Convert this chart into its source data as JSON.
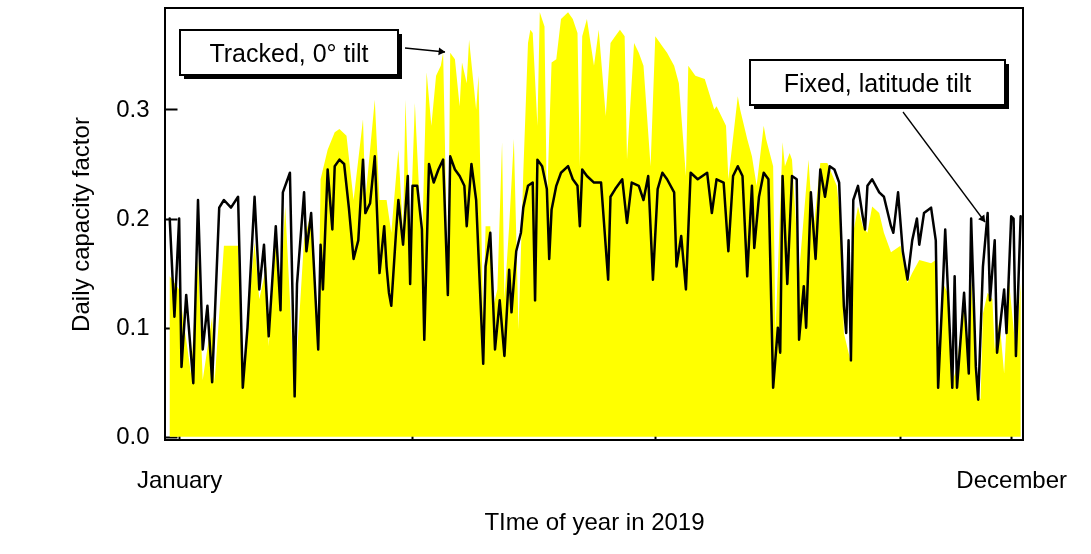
{
  "chart_data": {
    "type": "area",
    "xlabel": "TIme of year in 2019",
    "ylabel": "Daily capacity factor",
    "xlim": [
      "2019-01-01",
      "2019-12-31"
    ],
    "ylim": [
      -0.003,
      0.393
    ],
    "xticks": [
      {
        "value": "2019-01-07",
        "label": "January"
      },
      {
        "value": "2019-04-16",
        "label": null
      },
      {
        "value": "2019-07-28",
        "label": null
      },
      {
        "value": "2019-11-09",
        "label": null
      },
      {
        "value": "2019-12-26",
        "label": "December"
      }
    ],
    "yticks": [
      {
        "value": 0,
        "label": "0.0"
      },
      0.1,
      0.2,
      0.3
    ],
    "series": [
      {
        "name": "Tracked, 0° tilt",
        "type": "area",
        "color": "#ffff00",
        "x": [
          "2019-01-03",
          "2019-01-07",
          "2019-01-12",
          "2019-01-15",
          "2019-01-17",
          "2019-01-21",
          "2019-01-22",
          "2019-01-26",
          "2019-02-01",
          "2019-02-03",
          "2019-02-05",
          "2019-02-08",
          "2019-02-10",
          "2019-02-13",
          "2019-02-14",
          "2019-02-17",
          "2019-02-19",
          "2019-02-21",
          "2019-02-25",
          "2019-03-01",
          "2019-03-04",
          "2019-03-07",
          "2019-03-08",
          "2019-03-11",
          "2019-03-14",
          "2019-03-16",
          "2019-03-19",
          "2019-03-22",
          "2019-03-26",
          "2019-03-27",
          "2019-03-31",
          "2019-04-02",
          "2019-04-05",
          "2019-04-07",
          "2019-04-10",
          "2019-04-12",
          "2019-04-13",
          "2019-04-15",
          "2019-04-17",
          "2019-04-20",
          "2019-04-22",
          "2019-04-24",
          "2019-04-26",
          "2019-04-28",
          "2019-04-29",
          "2019-05-01",
          "2019-05-02",
          "2019-05-04",
          "2019-05-06",
          "2019-05-07",
          "2019-05-09",
          "2019-05-10",
          "2019-05-13",
          "2019-05-14",
          "2019-05-16",
          "2019-05-17",
          "2019-05-19",
          "2019-05-20",
          "2019-05-22",
          "2019-05-24",
          "2019-05-25",
          "2019-05-27",
          "2019-05-29",
          "2019-05-31",
          "2019-06-02",
          "2019-06-04",
          "2019-06-05",
          "2019-06-06",
          "2019-06-08",
          "2019-06-09",
          "2019-06-11",
          "2019-06-12",
          "2019-06-14",
          "2019-06-16",
          "2019-06-18",
          "2019-06-21",
          "2019-06-23",
          "2019-06-25",
          "2019-06-26",
          "2019-06-27",
          "2019-06-29",
          "2019-07-02",
          "2019-07-04",
          "2019-07-07",
          "2019-07-09",
          "2019-07-11",
          "2019-07-13",
          "2019-07-15",
          "2019-07-16",
          "2019-07-19",
          "2019-07-21",
          "2019-07-23",
          "2019-07-26",
          "2019-07-28",
          "2019-07-31",
          "2019-08-02",
          "2019-08-05",
          "2019-08-07",
          "2019-08-10",
          "2019-08-11",
          "2019-08-14",
          "2019-08-18",
          "2019-08-22",
          "2019-08-23",
          "2019-08-25",
          "2019-08-27",
          "2019-08-28",
          "2019-09-01",
          "2019-09-02",
          "2019-09-05",
          "2019-09-07",
          "2019-09-09",
          "2019-09-12",
          "2019-09-13",
          "2019-09-16",
          "2019-09-17",
          "2019-09-20",
          "2019-09-21",
          "2019-09-23",
          "2019-09-24",
          "2019-09-27",
          "2019-10-01",
          "2019-10-03",
          "2019-10-06",
          "2019-10-09",
          "2019-10-13",
          "2019-10-15",
          "2019-10-16",
          "2019-10-19",
          "2019-10-20",
          "2019-10-22",
          "2019-10-24",
          "2019-10-26",
          "2019-10-28",
          "2019-10-31",
          "2019-11-02",
          "2019-11-05",
          "2019-11-09",
          "2019-11-12",
          "2019-11-14",
          "2019-11-17",
          "2019-11-22",
          "2019-11-24",
          "2019-11-25",
          "2019-11-27",
          "2019-11-29",
          "2019-12-01",
          "2019-12-03",
          "2019-12-06",
          "2019-12-08",
          "2019-12-09",
          "2019-12-12",
          "2019-12-13",
          "2019-12-14",
          "2019-12-16",
          "2019-12-18",
          "2019-12-19",
          "2019-12-21",
          "2019-12-23",
          "2019-12-25",
          "2019-12-28",
          "2019-12-30"
        ],
        "values": [
          0.147,
          0.135,
          0.058,
          0.165,
          0.052,
          0.11,
          0.049,
          0.175,
          0.175,
          0.046,
          0.107,
          0.178,
          0.126,
          0.156,
          0.083,
          0.181,
          0.132,
          0.211,
          0.04,
          0.181,
          0.205,
          0.08,
          0.236,
          0.263,
          0.279,
          0.282,
          0.276,
          0.217,
          0.291,
          0.217,
          0.309,
          0.217,
          0.217,
          0.187,
          0.263,
          0.187,
          0.309,
          0.181,
          0.306,
          0.172,
          0.334,
          0.285,
          0.331,
          0.34,
          0.352,
          0.132,
          0.352,
          0.346,
          0.303,
          0.343,
          0.324,
          0.364,
          0.3,
          0.331,
          0.101,
          0.193,
          0.193,
          0.117,
          0.135,
          0.27,
          0.126,
          0.193,
          0.273,
          0.098,
          0.242,
          0.361,
          0.373,
          0.37,
          0.285,
          0.389,
          0.376,
          0.211,
          0.343,
          0.346,
          0.383,
          0.389,
          0.383,
          0.37,
          0.248,
          0.367,
          0.383,
          0.34,
          0.373,
          0.294,
          0.361,
          0.367,
          0.373,
          0.367,
          0.254,
          0.361,
          0.352,
          0.34,
          0.248,
          0.367,
          0.358,
          0.352,
          0.34,
          0.324,
          0.239,
          0.34,
          0.331,
          0.328,
          0.3,
          0.303,
          0.294,
          0.285,
          0.236,
          0.312,
          0.3,
          0.273,
          0.257,
          0.23,
          0.285,
          0.273,
          0.248,
          0.095,
          0.27,
          0.248,
          0.26,
          0.254,
          0.15,
          0.254,
          0.187,
          0.251,
          0.251,
          0.23,
          0.187,
          0.095,
          0.068,
          0.187,
          0.211,
          0.193,
          0.187,
          0.211,
          0.205,
          0.187,
          0.169,
          0.175,
          0.141,
          0.15,
          0.162,
          0.159,
          0.162,
          0.046,
          0.141,
          0.132,
          0.049,
          0.065,
          0.132,
          0.058,
          0.144,
          0.04,
          0.034,
          0.113,
          0.132,
          0.126,
          0.08,
          0.107,
          0.058,
          0.144,
          0.077,
          0.141
        ]
      },
      {
        "name": "Fixed, latitude tilt",
        "type": "line",
        "color": "#000000",
        "x": [
          "2019-01-03",
          "2019-01-05",
          "2019-01-07",
          "2019-01-08",
          "2019-01-10",
          "2019-01-13",
          "2019-01-15",
          "2019-01-17",
          "2019-01-19",
          "2019-01-21",
          "2019-01-24",
          "2019-01-26",
          "2019-01-29",
          "2019-02-01",
          "2019-02-03",
          "2019-02-05",
          "2019-02-07",
          "2019-02-08",
          "2019-02-10",
          "2019-02-12",
          "2019-02-14",
          "2019-02-17",
          "2019-02-19",
          "2019-02-20",
          "2019-02-23",
          "2019-02-25",
          "2019-02-26",
          "2019-03-01",
          "2019-03-02",
          "2019-03-04",
          "2019-03-07",
          "2019-03-08",
          "2019-03-09",
          "2019-03-11",
          "2019-03-13",
          "2019-03-14",
          "2019-03-16",
          "2019-03-18",
          "2019-03-20",
          "2019-03-22",
          "2019-03-24",
          "2019-03-26",
          "2019-03-27",
          "2019-03-29",
          "2019-03-31",
          "2019-04-02",
          "2019-04-04",
          "2019-04-05",
          "2019-04-06",
          "2019-04-07",
          "2019-04-09",
          "2019-04-10",
          "2019-04-12",
          "2019-04-14",
          "2019-04-15",
          "2019-04-16",
          "2019-04-18",
          "2019-04-20",
          "2019-04-21",
          "2019-04-23",
          "2019-04-25",
          "2019-04-27",
          "2019-04-29",
          "2019-05-01",
          "2019-05-02",
          "2019-05-04",
          "2019-05-06",
          "2019-05-08",
          "2019-05-09",
          "2019-05-11",
          "2019-05-13",
          "2019-05-16",
          "2019-05-17",
          "2019-05-19",
          "2019-05-21",
          "2019-05-23",
          "2019-05-25",
          "2019-05-27",
          "2019-05-28",
          "2019-05-30",
          "2019-06-01",
          "2019-06-02",
          "2019-06-04",
          "2019-06-06",
          "2019-06-07",
          "2019-06-08",
          "2019-06-10",
          "2019-06-12",
          "2019-06-13",
          "2019-06-14",
          "2019-06-16",
          "2019-06-18",
          "2019-06-21",
          "2019-06-23",
          "2019-06-25",
          "2019-06-26",
          "2019-06-27",
          "2019-06-29",
          "2019-07-02",
          "2019-07-05",
          "2019-07-08",
          "2019-07-09",
          "2019-07-11",
          "2019-07-14",
          "2019-07-16",
          "2019-07-18",
          "2019-07-21",
          "2019-07-23",
          "2019-07-25",
          "2019-07-27",
          "2019-07-29",
          "2019-07-31",
          "2019-08-02",
          "2019-08-05",
          "2019-08-06",
          "2019-08-08",
          "2019-08-10",
          "2019-08-12",
          "2019-08-15",
          "2019-08-19",
          "2019-08-21",
          "2019-08-23",
          "2019-08-26",
          "2019-08-28",
          "2019-08-30",
          "2019-09-01",
          "2019-09-03",
          "2019-09-05",
          "2019-09-07",
          "2019-09-08",
          "2019-09-10",
          "2019-09-12",
          "2019-09-14",
          "2019-09-16",
          "2019-09-18",
          "2019-09-19",
          "2019-09-20",
          "2019-09-22",
          "2019-09-24",
          "2019-09-26",
          "2019-09-27",
          "2019-09-29",
          "2019-09-30",
          "2019-10-02",
          "2019-10-04",
          "2019-10-06",
          "2019-10-08",
          "2019-10-10",
          "2019-10-12",
          "2019-10-14",
          "2019-10-16",
          "2019-10-17",
          "2019-10-18",
          "2019-10-19",
          "2019-10-20",
          "2019-10-22",
          "2019-10-24",
          "2019-10-25",
          "2019-10-26",
          "2019-10-28",
          "2019-10-31",
          "2019-11-02",
          "2019-11-05",
          "2019-11-06",
          "2019-11-08",
          "2019-11-10",
          "2019-11-12",
          "2019-11-14",
          "2019-11-16",
          "2019-11-17",
          "2019-11-19",
          "2019-11-22",
          "2019-11-24",
          "2019-11-25",
          "2019-11-27",
          "2019-11-28",
          "2019-12-01",
          "2019-12-02",
          "2019-12-03",
          "2019-12-06",
          "2019-12-08",
          "2019-12-09",
          "2019-12-11",
          "2019-12-12",
          "2019-12-14",
          "2019-12-16",
          "2019-12-17",
          "2019-12-19",
          "2019-12-20",
          "2019-12-23",
          "2019-12-24",
          "2019-12-26",
          "2019-12-27",
          "2019-12-28",
          "2019-12-30"
        ],
        "values": [
          0.2,
          0.11,
          0.2,
          0.064,
          0.13,
          0.049,
          0.217,
          0.08,
          0.12,
          0.05,
          0.21,
          0.217,
          0.21,
          0.22,
          0.045,
          0.1,
          0.18,
          0.22,
          0.135,
          0.176,
          0.092,
          0.193,
          0.116,
          0.224,
          0.242,
          0.037,
          0.14,
          0.224,
          0.17,
          0.205,
          0.08,
          0.176,
          0.135,
          0.245,
          0.19,
          0.248,
          0.254,
          0.25,
          0.21,
          0.163,
          0.18,
          0.254,
          0.205,
          0.214,
          0.257,
          0.15,
          0.193,
          0.156,
          0.132,
          0.12,
          0.187,
          0.217,
          0.176,
          0.239,
          0.14,
          0.23,
          0.23,
          0.19,
          0.089,
          0.25,
          0.233,
          0.245,
          0.254,
          0.13,
          0.257,
          0.245,
          0.239,
          0.23,
          0.193,
          0.25,
          0.217,
          0.067,
          0.156,
          0.187,
          0.08,
          0.125,
          0.074,
          0.153,
          0.114,
          0.17,
          0.187,
          0.21,
          0.23,
          0.233,
          0.125,
          0.254,
          0.248,
          0.227,
          0.163,
          0.208,
          0.23,
          0.242,
          0.248,
          0.236,
          0.23,
          0.193,
          0.245,
          0.239,
          0.233,
          0.233,
          0.144,
          0.22,
          0.227,
          0.236,
          0.196,
          0.233,
          0.23,
          0.217,
          0.239,
          0.144,
          0.227,
          0.242,
          0.236,
          0.224,
          0.156,
          0.184,
          0.135,
          0.242,
          0.236,
          0.242,
          0.205,
          0.236,
          0.233,
          0.17,
          0.239,
          0.248,
          0.239,
          0.147,
          0.23,
          0.173,
          0.22,
          0.242,
          0.236,
          0.045,
          0.1,
          0.077,
          0.239,
          0.14,
          0.239,
          0.236,
          0.089,
          0.138,
          0.1,
          0.224,
          0.163,
          0.245,
          0.22,
          0.248,
          0.245,
          0.233,
          0.12,
          0.095,
          0.18,
          0.07,
          0.217,
          0.23,
          0.202,
          0.19,
          0.23,
          0.236,
          0.224,
          0.22,
          0.193,
          0.187,
          0.224,
          0.17,
          0.144,
          0.18,
          0.2,
          0.176,
          0.205,
          0.21,
          0.18,
          0.045,
          0.138,
          0.19,
          0.045,
          0.147,
          0.045,
          0.132,
          0.058,
          0.2,
          0.064,
          0.034,
          0.156,
          0.205,
          0.125,
          0.18,
          0.077,
          0.135,
          0.095,
          0.202,
          0.2,
          0.074,
          0.202
        ]
      }
    ]
  }
}
